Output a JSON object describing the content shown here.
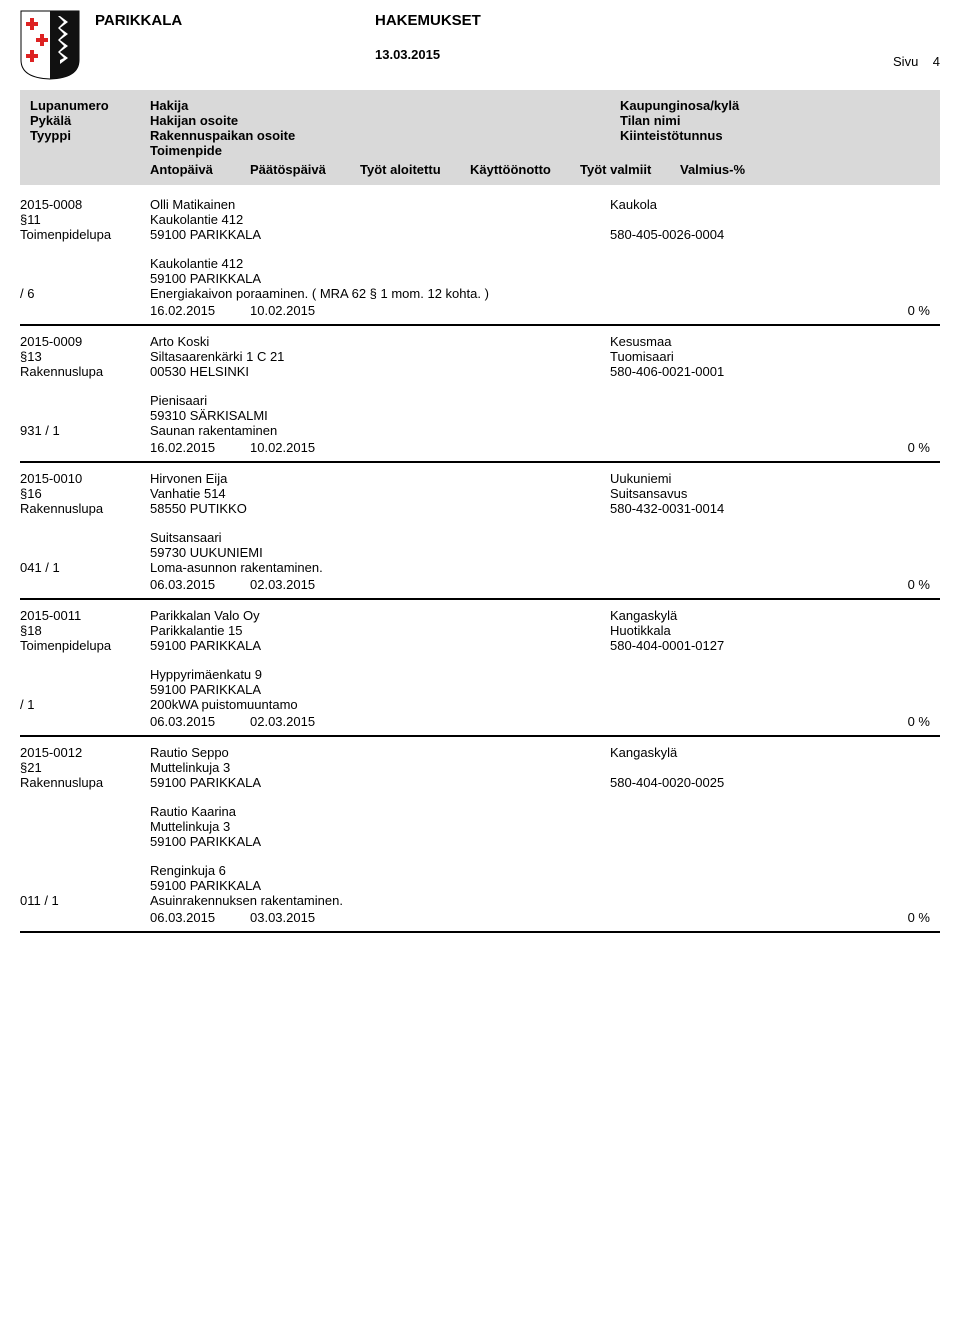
{
  "header": {
    "municipality": "PARIKKALA",
    "title": "HAKEMUKSET",
    "date": "13.03.2015",
    "page_label": "Sivu",
    "page_number": "4"
  },
  "legend": {
    "col1": [
      "Lupanumero",
      "Pykälä",
      "Tyyppi"
    ],
    "col2": [
      "Hakija",
      "Hakijan osoite",
      "Rakennuspaikan osoite",
      "Toimenpide"
    ],
    "col3": [
      "Kaupunginosa/kylä",
      "Tilan nimi",
      "Kiinteistötunnus"
    ],
    "dates": [
      "Antopäivä",
      "Päätöspäivä",
      "Työt aloitettu",
      "Käyttöönotto",
      "Työt valmiit",
      "Valmius-%"
    ]
  },
  "entries": [
    {
      "lupanumero": "2015-0008",
      "pykala": "§11",
      "tyyppi": "Toimenpidelupa",
      "hakija": "Olli Matikainen",
      "hakija_osoite": "Kaukolantie 412",
      "hakija_postitoimipaikka": "59100   PARIKKALA",
      "kaupunginosa": "Kaukola",
      "tilan_nimi": "",
      "kiinteistotunnus": "580-405-0026-0004",
      "blocks": [
        {
          "left": "/ 6",
          "lines": [
            "Kaukolantie 412",
            "59100 PARIKKALA",
            "Energiakaivon poraaminen. ( MRA 62 § 1 mom. 12 kohta. )"
          ],
          "dates": {
            "d1": "16.02.2015",
            "d2": "10.02.2015",
            "d3": "",
            "d4": "",
            "d5": "",
            "pct": "0 %"
          }
        }
      ]
    },
    {
      "lupanumero": "2015-0009",
      "pykala": "§13",
      "tyyppi": "Rakennuslupa",
      "hakija": "Arto Koski",
      "hakija_osoite": "Siltasaarenkärki 1 C 21",
      "hakija_postitoimipaikka": "00530   HELSINKI",
      "kaupunginosa": "Kesusmaa",
      "tilan_nimi": "Tuomisaari",
      "kiinteistotunnus": "580-406-0021-0001",
      "blocks": [
        {
          "left": "931 / 1",
          "lines": [
            "Pienisaari",
            "59310 SÄRKISALMI",
            "Saunan rakentaminen"
          ],
          "dates": {
            "d1": "16.02.2015",
            "d2": "10.02.2015",
            "d3": "",
            "d4": "",
            "d5": "",
            "pct": "0 %"
          }
        }
      ]
    },
    {
      "lupanumero": "2015-0010",
      "pykala": "§16",
      "tyyppi": "Rakennuslupa",
      "hakija": "Hirvonen Eija",
      "hakija_osoite": "Vanhatie 514",
      "hakija_postitoimipaikka": "58550   PUTIKKO",
      "kaupunginosa": "Uukuniemi",
      "tilan_nimi": "Suitsansavus",
      "kiinteistotunnus": "580-432-0031-0014",
      "blocks": [
        {
          "left": "041 / 1",
          "lines": [
            "Suitsansaari",
            "59730 UUKUNIEMI",
            "Loma-asunnon rakentaminen."
          ],
          "dates": {
            "d1": "06.03.2015",
            "d2": "02.03.2015",
            "d3": "",
            "d4": "",
            "d5": "",
            "pct": "0 %"
          }
        }
      ]
    },
    {
      "lupanumero": "2015-0011",
      "pykala": "§18",
      "tyyppi": "Toimenpidelupa",
      "hakija": "Parikkalan Valo Oy",
      "hakija_osoite": "Parikkalantie 15",
      "hakija_postitoimipaikka": "59100   PARIKKALA",
      "kaupunginosa": "Kangaskylä",
      "tilan_nimi": "Huotikkala",
      "kiinteistotunnus": "580-404-0001-0127",
      "blocks": [
        {
          "left": "/ 1",
          "lines": [
            "Hyppyrimäenkatu 9",
            "59100 PARIKKALA",
            "200kWA puistomuuntamo"
          ],
          "dates": {
            "d1": "06.03.2015",
            "d2": "02.03.2015",
            "d3": "",
            "d4": "",
            "d5": "",
            "pct": "0 %"
          }
        }
      ]
    },
    {
      "lupanumero": "2015-0012",
      "pykala": "§21",
      "tyyppi": "Rakennuslupa",
      "hakija": "Rautio Seppo",
      "hakija_osoite": "Muttelinkuja 3",
      "hakija_postitoimipaikka": "59100   PARIKKALA",
      "kaupunginosa": "Kangaskylä",
      "tilan_nimi": "",
      "kiinteistotunnus": "580-404-0020-0025",
      "extra_applicant": {
        "lines": [
          "Rautio Kaarina",
          "Muttelinkuja 3",
          "59100   PARIKKALA"
        ]
      },
      "blocks": [
        {
          "left": "011 / 1",
          "lines": [
            "Renginkuja 6",
            "59100 PARIKKALA",
            "Asuinrakennuksen rakentaminen."
          ],
          "dates": {
            "d1": "06.03.2015",
            "d2": "03.03.2015",
            "d3": "",
            "d4": "",
            "d5": "",
            "pct": "0 %"
          }
        }
      ]
    }
  ]
}
